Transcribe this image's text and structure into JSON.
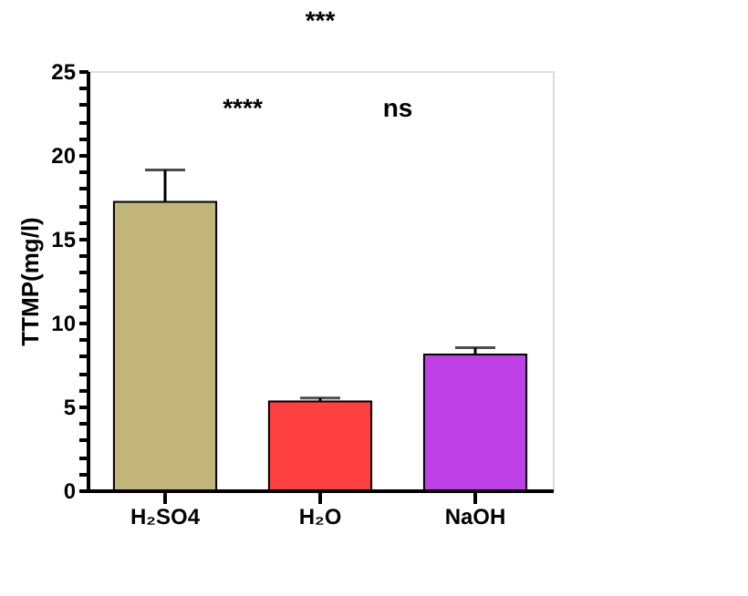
{
  "chart_data": {
    "type": "bar",
    "ylabel": "TTMP(mg/l)",
    "categories": [
      "H₂SO4",
      "H₂O",
      "NaOH"
    ],
    "values": [
      17.2,
      5.3,
      8.1
    ],
    "colors": [
      "#c2b57a",
      "#ff4040",
      "#bf40e6"
    ],
    "errors": [
      [
        17.2,
        19.1
      ],
      [
        5.3,
        5.5
      ],
      [
        8.1,
        8.5
      ]
    ],
    "ylim": [
      0,
      25
    ],
    "yticks": [
      0,
      {
        "value": 1,
        "label": null
      },
      {
        "value": 2,
        "label": null
      },
      {
        "value": 3,
        "label": null
      },
      {
        "value": 4,
        "label": null
      },
      5,
      {
        "value": 6,
        "label": null
      },
      {
        "value": 7,
        "label": null
      },
      {
        "value": 8,
        "label": null
      },
      {
        "value": 9,
        "label": null
      },
      10,
      {
        "value": 11,
        "label": null
      },
      {
        "value": 12,
        "label": null
      },
      {
        "value": 13,
        "label": null
      },
      {
        "value": 14,
        "label": null
      },
      15,
      {
        "value": 16,
        "label": null
      },
      {
        "value": 17,
        "label": null
      },
      {
        "value": 18,
        "label": null
      },
      {
        "value": 19,
        "label": null
      },
      20,
      {
        "value": 21,
        "label": null
      },
      {
        "value": 22,
        "label": null
      },
      {
        "value": 23,
        "label": null
      },
      {
        "value": 24,
        "label": null
      },
      25
    ],
    "annotations": [
      "***",
      "****",
      "ns"
    ],
    "grid": false
  }
}
